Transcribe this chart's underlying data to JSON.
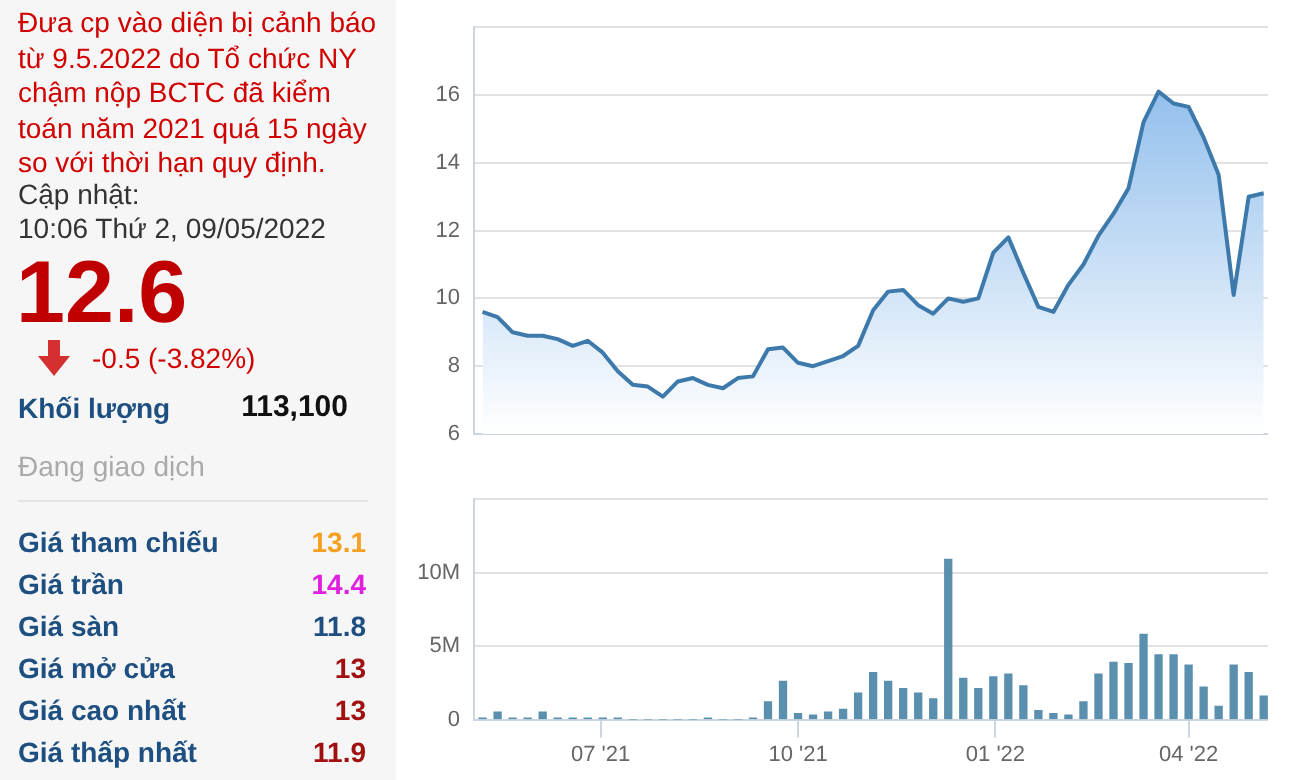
{
  "chart_data": [
    {
      "type": "other",
      "annotations": [
        "Đưa cp vào diện bị cảnh báo từ 9.5.2022 do Tổ chức NY chậm nộp BCTC đã kiểm toán năm 2021 quá 15 ngày so với thời hạn quy định.",
        "Cập nhật:",
        "10:06 Thứ 2, 09/05/2022",
        "12.6",
        "-0.5 (-3.82%)",
        "Khối lượng",
        "113,100",
        "Đang giao dịch",
        "Giá tham chiếu",
        "13.1",
        "Giá trần",
        "14.4",
        "Giá sàn",
        "11.8",
        "Giá mở cửa",
        "13",
        "Giá cao nhất",
        "13",
        "Giá thấp nhất",
        "11.9"
      ]
    },
    {
      "type": "area",
      "x": [
        "2021-05-07",
        "2021-05-14",
        "2021-05-21",
        "2021-05-28",
        "2021-06-04",
        "2021-06-11",
        "2021-06-18",
        "2021-06-25",
        "2021-07-02",
        "2021-07-09",
        "2021-07-16",
        "2021-07-23",
        "2021-07-30",
        "2021-08-06",
        "2021-08-13",
        "2021-08-20",
        "2021-08-27",
        "2021-09-03",
        "2021-09-10",
        "2021-09-17",
        "2021-09-24",
        "2021-10-01",
        "2021-10-08",
        "2021-10-15",
        "2021-10-22",
        "2021-10-29",
        "2021-11-05",
        "2021-11-12",
        "2021-11-19",
        "2021-11-26",
        "2021-12-03",
        "2021-12-10",
        "2021-12-17",
        "2021-12-24",
        "2021-12-31",
        "2022-01-07",
        "2022-01-14",
        "2022-01-21",
        "2022-01-28",
        "2022-02-04",
        "2022-02-11",
        "2022-02-18",
        "2022-02-25",
        "2022-03-04",
        "2022-03-11",
        "2022-03-18",
        "2022-03-25",
        "2022-04-01",
        "2022-04-08",
        "2022-04-15",
        "2022-04-22",
        "2022-04-29",
        "2022-05-06"
      ],
      "series": [
        {
          "color": "#3d7aab",
          "values": [
            9.6,
            9.45,
            9.0,
            8.9,
            8.9,
            8.8,
            8.6,
            8.75,
            8.4,
            7.85,
            7.45,
            7.4,
            7.1,
            7.55,
            7.65,
            7.45,
            7.35,
            7.65,
            7.7,
            8.5,
            8.55,
            8.1,
            8.0,
            8.15,
            8.3,
            8.6,
            9.65,
            10.2,
            10.25,
            9.8,
            9.55,
            10.0,
            9.9,
            10.0,
            11.35,
            11.8,
            10.75,
            9.75,
            9.6,
            10.4,
            11.0,
            11.85,
            12.5,
            13.25,
            15.2,
            16.1,
            15.75,
            15.65,
            14.75,
            13.65,
            10.1,
            13.0,
            13.1
          ]
        }
      ],
      "xlim": [
        "2021-05-03",
        "2022-05-08"
      ],
      "ylim": [
        6,
        18
      ],
      "yticks": [
        6,
        8,
        10,
        12,
        14,
        16,
        {
          "value": 18,
          "label": null
        }
      ],
      "grid": "y",
      "tick_labels": "y",
      "legend": false
    },
    {
      "type": "bar",
      "x": [
        "2021-05-07",
        "2021-05-14",
        "2021-05-21",
        "2021-05-28",
        "2021-06-04",
        "2021-06-11",
        "2021-06-18",
        "2021-06-25",
        "2021-07-02",
        "2021-07-09",
        "2021-07-16",
        "2021-07-23",
        "2021-07-30",
        "2021-08-06",
        "2021-08-13",
        "2021-08-20",
        "2021-08-27",
        "2021-09-03",
        "2021-09-10",
        "2021-09-17",
        "2021-09-24",
        "2021-10-01",
        "2021-10-08",
        "2021-10-15",
        "2021-10-22",
        "2021-10-29",
        "2021-11-05",
        "2021-11-12",
        "2021-11-19",
        "2021-11-26",
        "2021-12-03",
        "2021-12-10",
        "2021-12-17",
        "2021-12-24",
        "2021-12-31",
        "2022-01-07",
        "2022-01-14",
        "2022-01-21",
        "2022-01-28",
        "2022-02-04",
        "2022-02-11",
        "2022-02-18",
        "2022-02-25",
        "2022-03-04",
        "2022-03-11",
        "2022-03-18",
        "2022-03-25",
        "2022-04-01",
        "2022-04-08",
        "2022-04-15",
        "2022-04-22",
        "2022-04-29",
        "2022-05-06"
      ],
      "series": [
        {
          "color": "#5a8fae",
          "values": [
            0.1,
            0.5,
            0.1,
            0.1,
            0.5,
            0.1,
            0.1,
            0.1,
            0.1,
            0.1,
            0,
            0,
            0,
            0,
            0,
            0.1,
            0,
            0,
            0.1,
            1.2,
            2.6,
            0.4,
            0.3,
            0.5,
            0.7,
            1.8,
            3.2,
            2.6,
            2.1,
            1.8,
            1.4,
            10.9,
            2.8,
            2.1,
            2.9,
            3.1,
            2.3,
            0.6,
            0.4,
            0.3,
            1.2,
            3.1,
            3.9,
            3.8,
            5.8,
            4.4,
            4.4,
            3.7,
            2.2,
            0.9,
            3.7,
            3.2,
            1.6
          ]
        }
      ],
      "xlim": [
        "2021-05-03",
        "2022-05-08"
      ],
      "xticks": [
        {
          "value": "2021-07-01",
          "label": "07 '21"
        },
        {
          "value": "2021-10-01",
          "label": "10 '21"
        },
        {
          "value": "2022-01-01",
          "label": "01 '22"
        },
        {
          "value": "2022-04-01",
          "label": "04 '22"
        }
      ],
      "ylim": [
        0,
        15
      ],
      "yticks": [
        0,
        {
          "value": 5,
          "label": "5M"
        },
        {
          "value": 10,
          "label": "10M"
        },
        {
          "value": 15,
          "label": null
        }
      ],
      "grid": "y",
      "legend": false
    }
  ]
}
